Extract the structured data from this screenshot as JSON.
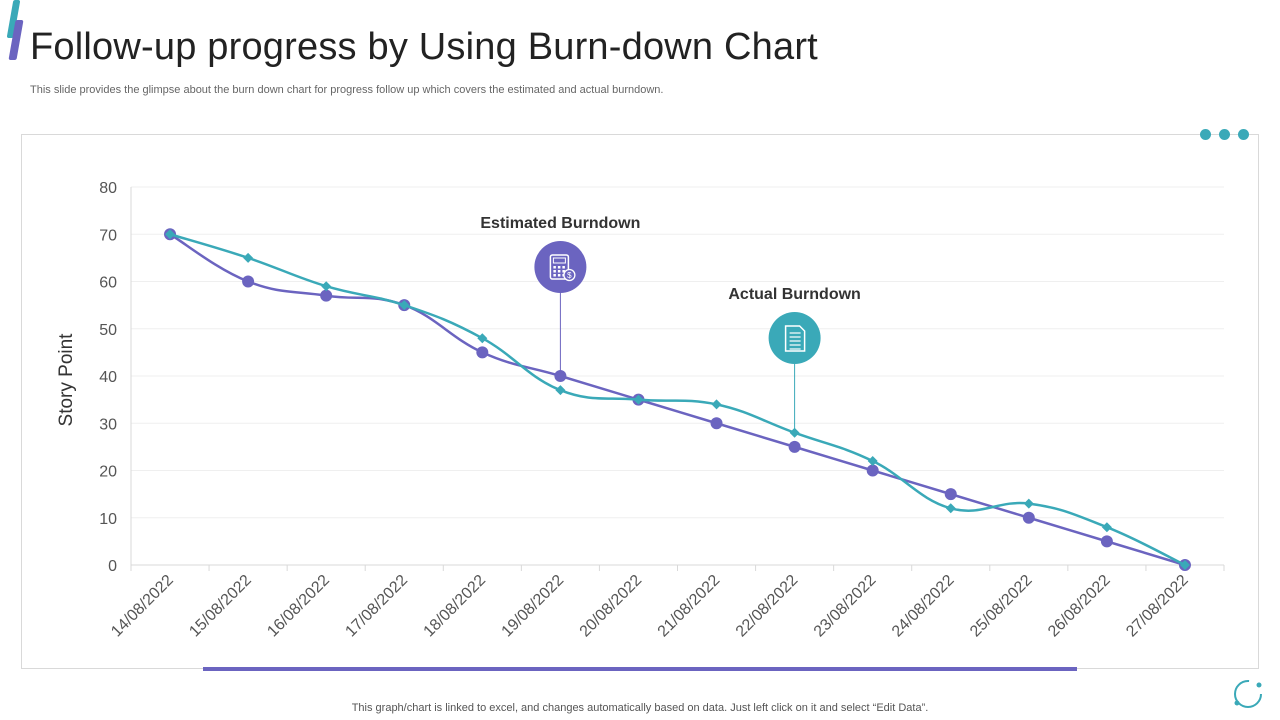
{
  "header": {
    "title": "Follow-up progress by Using Burn-down Chart",
    "subtitle": "This slide provides the glimpse about the burn down chart for progress follow up which covers the estimated and actual burndown."
  },
  "footer": {
    "note": "This graph/chart is linked to excel,  and changes automatically based on data. Just left click on it and select “Edit Data”."
  },
  "colors": {
    "estimated": "#6b64c0",
    "actual": "#3aa9b8"
  },
  "chart_data": {
    "type": "line",
    "title": "",
    "xlabel": "",
    "ylabel": "Story Point",
    "ylim": [
      0,
      80
    ],
    "yticks": [
      0,
      10,
      20,
      30,
      40,
      50,
      60,
      70,
      80
    ],
    "grid": true,
    "categories": [
      "14/08/2022",
      "15/08/2022",
      "16/08/2022",
      "17/08/2022",
      "18/08/2022",
      "19/08/2022",
      "20/08/2022",
      "21/08/2022",
      "22/08/2022",
      "23/08/2022",
      "24/08/2022",
      "25/08/2022",
      "26/08/2022",
      "27/08/2022"
    ],
    "series": [
      {
        "name": "Estimated Burndown",
        "marker": "circle",
        "values": [
          70,
          60,
          57,
          55,
          45,
          40,
          35,
          30,
          25,
          20,
          15,
          10,
          5,
          0
        ]
      },
      {
        "name": "Actual Burndown",
        "marker": "diamond",
        "values": [
          70,
          65,
          59,
          55,
          48,
          37,
          35,
          34,
          28,
          22,
          12,
          13,
          8,
          0
        ]
      }
    ],
    "annotations": [
      {
        "label": "Estimated Burndown",
        "series": 0,
        "category_index": 5,
        "icon": "calculator-icon"
      },
      {
        "label": "Actual Burndown",
        "series": 1,
        "category_index": 8,
        "icon": "document-icon"
      }
    ]
  }
}
